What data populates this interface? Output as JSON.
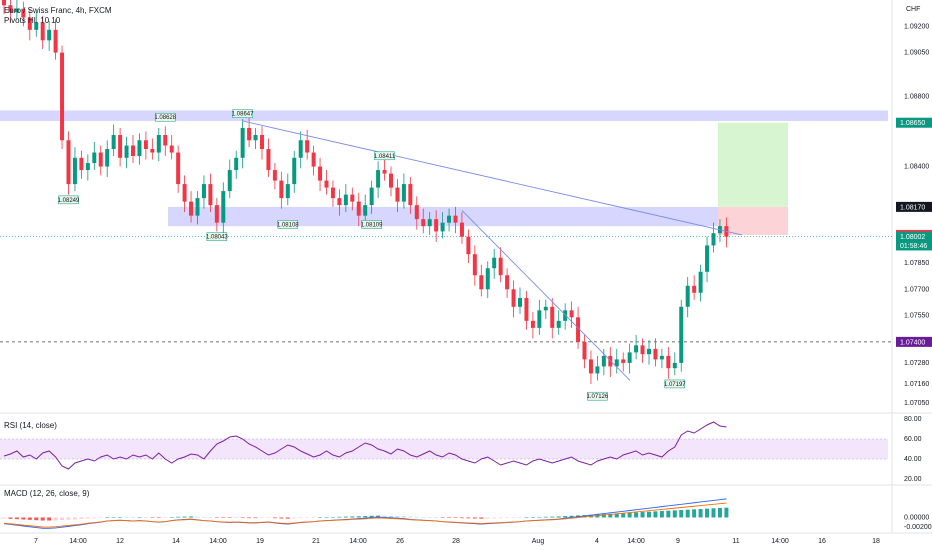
{
  "header": {
    "symbol_title": "Euro / Swiss Franc, 4h, FXCM",
    "pivots_label": "Pivots HL 10 10",
    "currency": "CHF"
  },
  "colors": {
    "up": "#089981",
    "down": "#f23645",
    "zone": "#c8c8ff",
    "trendline": "#7b8ce6",
    "rsi_line": "#7e1fa2",
    "rsi_band": "#f3e5fb",
    "macd_line": "#2962ff",
    "signal_line": "#ff6d00",
    "target_zone": "#d6f5d0",
    "stop_zone": "#fcd3d6"
  },
  "price_axis": {
    "min": 1.07,
    "max": 1.0935,
    "labels": [
      "1.09200",
      "1.09050",
      "1.08800",
      "1.08650",
      "1.08400",
      "1.08170",
      "1.08010",
      "1.07850",
      "1.07700",
      "1.07550",
      "1.07400",
      "1.07280",
      "1.07160",
      "1.07050"
    ]
  },
  "price_tags": [
    {
      "value": "1.08650",
      "price": 1.0865,
      "color": "#089981"
    },
    {
      "value": "1.08170",
      "price": 1.0817,
      "color": "#131722"
    },
    {
      "value": "1.08010",
      "price": 1.0801,
      "color": "#f23645"
    },
    {
      "value": "1.08002",
      "price": 1.08,
      "color": "#089981"
    },
    {
      "value": "01:58:46",
      "price": 1.0795,
      "color": "#089981"
    },
    {
      "value": "1.07400",
      "price": 1.074,
      "color": "#6a1b9a"
    }
  ],
  "time_axis": [
    "7",
    "14:00",
    "12",
    "14",
    "14:00",
    "19",
    "21",
    "14:00",
    "26",
    "28",
    "Aug",
    "4",
    "14:00",
    "9",
    "11",
    "14:00",
    "16",
    "18"
  ],
  "pivot_labels": [
    {
      "text": "1.08249",
      "bar": 10,
      "price": 1.0825,
      "pos": "below"
    },
    {
      "text": "1.08628",
      "bar": 25,
      "price": 1.0863,
      "pos": "above"
    },
    {
      "text": "1.08647",
      "bar": 37,
      "price": 1.0865,
      "pos": "above"
    },
    {
      "text": "1.08043",
      "bar": 33,
      "price": 1.0804,
      "pos": "below"
    },
    {
      "text": "1.08108",
      "bar": 44,
      "price": 1.0811,
      "pos": "below"
    },
    {
      "text": "1.08411",
      "bar": 59,
      "price": 1.0841,
      "pos": "above"
    },
    {
      "text": "1.08109",
      "bar": 57,
      "price": 1.0811,
      "pos": "below"
    },
    {
      "text": "1.07126",
      "bar": 92,
      "price": 1.0713,
      "pos": "below"
    },
    {
      "text": "1.07197",
      "bar": 104,
      "price": 1.072,
      "pos": "below"
    }
  ],
  "zones": [
    {
      "name": "upper-resistance-zone",
      "top": 1.0872,
      "bottom": 1.0866
    },
    {
      "name": "support-zone",
      "top": 1.0817,
      "bottom": 1.0806
    }
  ],
  "panes": {
    "rsi": {
      "label": "RSI (14, close)",
      "axis": [
        "80.00",
        "60.00",
        "40.00",
        "20.00"
      ]
    },
    "macd": {
      "label": "MACD (12, 26, close, 9)",
      "axis": [
        "0.00000",
        "-0.00200"
      ]
    }
  },
  "chart_data": {
    "type": "candlestick",
    "timeframe": "4h",
    "symbol": "EURCHF",
    "closes": [
      1.0932,
      1.0928,
      1.093,
      1.0925,
      1.0918,
      1.0922,
      1.0912,
      1.0918,
      1.0905,
      1.0855,
      1.083,
      1.0845,
      1.0838,
      1.0842,
      1.0848,
      1.084,
      1.085,
      1.0858,
      1.0845,
      1.0852,
      1.0846,
      1.0855,
      1.085,
      1.0848,
      1.0858,
      1.0852,
      1.0848,
      1.083,
      1.082,
      1.0812,
      1.0822,
      1.083,
      1.0818,
      1.0808,
      1.0826,
      1.0838,
      1.0845,
      1.0862,
      1.0855,
      1.0858,
      1.085,
      1.0838,
      1.0832,
      1.0822,
      1.083,
      1.0845,
      1.0855,
      1.0848,
      1.084,
      1.0832,
      1.0828,
      1.0822,
      1.0818,
      1.0824,
      1.082,
      1.0812,
      1.0818,
      1.0828,
      1.0838,
      1.0836,
      1.0828,
      1.082,
      1.083,
      1.0818,
      1.081,
      1.0806,
      1.081,
      1.0803,
      1.0808,
      1.0812,
      1.0808,
      1.08,
      1.079,
      1.0778,
      1.077,
      1.0782,
      1.0788,
      1.0778,
      1.077,
      1.076,
      1.0765,
      1.0752,
      1.0748,
      1.0758,
      1.076,
      1.0748,
      1.0752,
      1.0758,
      1.0754,
      1.074,
      1.073,
      1.0722,
      1.0726,
      1.0732,
      1.0726,
      1.073,
      1.0728,
      1.0734,
      1.0738,
      1.0733,
      1.0736,
      1.073,
      1.0732,
      1.0725,
      1.0728,
      1.076,
      1.0772,
      1.0768,
      1.078,
      1.0795,
      1.0802,
      1.0806,
      1.08
    ],
    "rsi": [
      43,
      45,
      48,
      42,
      44,
      40,
      46,
      48,
      42,
      33,
      30,
      36,
      38,
      40,
      38,
      42,
      44,
      40,
      42,
      40,
      44,
      42,
      44,
      40,
      46,
      40,
      36,
      40,
      42,
      45,
      44,
      40,
      48,
      55,
      58,
      62,
      63,
      60,
      55,
      52,
      48,
      44,
      46,
      50,
      54,
      52,
      48,
      45,
      42,
      44,
      48,
      44,
      42,
      46,
      48,
      52,
      56,
      54,
      50,
      48,
      45,
      50,
      48,
      44,
      42,
      45,
      48,
      44,
      42,
      46,
      44,
      40,
      38,
      36,
      40,
      42,
      38,
      34,
      36,
      38,
      36,
      34,
      38,
      40,
      38,
      36,
      38,
      40,
      42,
      38,
      36,
      34,
      38,
      40,
      42,
      40,
      44,
      46,
      48,
      44,
      46,
      44,
      42,
      48,
      52,
      64,
      68,
      66,
      70,
      74,
      77,
      73,
      72
    ],
    "rsi_levels": [
      70,
      30
    ],
    "macd_hist": [
      -0.0006,
      -0.0008,
      -0.001,
      -0.0012,
      -0.0014,
      -0.0016,
      -0.0018,
      -0.0018,
      -0.0017,
      -0.0015,
      -0.0013,
      -0.0011,
      -0.0009,
      -0.0006,
      -0.0004,
      -0.0002,
      0.0001,
      0.0002,
      0.0003,
      0.0002,
      0.0001,
      0.0002,
      0.0001,
      -0.0001,
      -0.0002,
      -0.0001,
      0.0002,
      0.0004,
      0.0005,
      0.0006,
      0.0004,
      0.0002,
      0.0001,
      -0.0001,
      -0.0002,
      -0.0003,
      -0.0002,
      -0.0003,
      -0.0004,
      -0.0004,
      -0.0003,
      -0.0002,
      -0.0004,
      -0.0006,
      -0.0007,
      -0.0005,
      -0.0003,
      -0.0002,
      -0.0001,
      0.0001,
      0.0002,
      0.0003,
      0.0004,
      0.0005,
      0.0006,
      0.0007,
      0.0008,
      0.001,
      0.0011,
      0.001,
      0.0009,
      0.0008,
      0.0007,
      0.0005,
      0.0004,
      0.0003,
      0.0002,
      0.0001,
      -0.0001,
      -0.0002,
      -0.0003,
      -0.0004,
      -0.0005,
      -0.0006,
      -0.0007,
      -0.0006,
      -0.0005,
      -0.0004,
      -0.0003,
      -0.0002,
      -0.0001,
      0.0001,
      0.0002,
      0.0003,
      0.0004,
      0.0005,
      0.0006,
      0.0008,
      0.001,
      0.0012,
      0.0014,
      0.0016,
      0.0018,
      0.002,
      0.0022,
      0.0024,
      0.0026,
      0.0028,
      0.003,
      0.0032,
      0.0034,
      0.0036,
      0.0038,
      0.004,
      0.0042,
      0.0044,
      0.0046,
      0.0048,
      0.005,
      0.0052,
      0.0054,
      0.0056,
      0.0058
    ]
  }
}
